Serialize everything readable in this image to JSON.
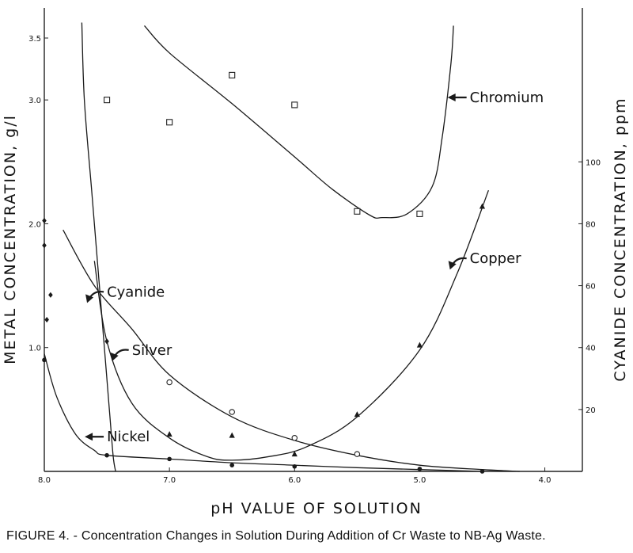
{
  "figure": {
    "caption": "FIGURE 4. - Concentration Changes in Solution During Addition of Cr Waste to NB-Ag Waste."
  },
  "chart_data": {
    "type": "line",
    "xlabel": "pH VALUE OF SOLUTION",
    "ylabel_left": "METAL CONCENTRATION, g/l",
    "ylabel_right": "CYANIDE CONCENTRATION, ppm",
    "xlim": [
      8.0,
      3.7
    ],
    "x_reversed": true,
    "ylim_left": [
      0,
      3.5
    ],
    "ylim_right": [
      0,
      140
    ],
    "x_ticks": [
      "8.0",
      "7.0",
      "6.0",
      "5.0",
      "4.0"
    ],
    "y_ticks_left": [
      "1.0",
      "2.0",
      "3.0",
      "3.5"
    ],
    "y_ticks_right": [
      "20",
      "40",
      "60",
      "80",
      "100"
    ],
    "grid": false,
    "series": [
      {
        "name": "Chromium",
        "axis": "left",
        "marker": "open-square",
        "points": [
          [
            7.5,
            3.0
          ],
          [
            7.0,
            2.82
          ],
          [
            6.5,
            3.2
          ],
          [
            6.0,
            2.96
          ],
          [
            5.5,
            2.1
          ],
          [
            5.0,
            2.08
          ]
        ],
        "curve": [
          [
            7.2,
            3.6
          ],
          [
            7.0,
            3.38
          ],
          [
            6.5,
            2.97
          ],
          [
            6.0,
            2.54
          ],
          [
            5.7,
            2.28
          ],
          [
            5.4,
            2.07
          ],
          [
            5.3,
            2.05
          ],
          [
            5.1,
            2.08
          ],
          [
            4.9,
            2.3
          ],
          [
            4.82,
            2.7
          ],
          [
            4.75,
            3.3
          ],
          [
            4.73,
            3.6
          ]
        ],
        "label_x": 4.6,
        "label_y": 3.02
      },
      {
        "name": "Copper",
        "axis": "left",
        "marker": "filled-triangle",
        "points": [
          [
            7.0,
            0.3
          ],
          [
            6.5,
            0.29
          ],
          [
            6.0,
            0.14
          ],
          [
            5.5,
            0.46
          ],
          [
            5.0,
            1.02
          ],
          [
            4.5,
            2.14
          ]
        ],
        "curve": [
          [
            7.6,
            1.7
          ],
          [
            7.5,
            1.05
          ],
          [
            7.3,
            0.55
          ],
          [
            7.0,
            0.27
          ],
          [
            6.7,
            0.12
          ],
          [
            6.5,
            0.09
          ],
          [
            6.2,
            0.12
          ],
          [
            5.9,
            0.2
          ],
          [
            5.5,
            0.44
          ],
          [
            5.0,
            0.98
          ],
          [
            4.7,
            1.6
          ],
          [
            4.45,
            2.27
          ]
        ],
        "label_x": 4.6,
        "label_y": 1.72
      },
      {
        "name": "Silver",
        "axis": "left",
        "marker": "open-circle",
        "points": [
          [
            7.0,
            0.72
          ],
          [
            6.5,
            0.48
          ],
          [
            6.0,
            0.27
          ],
          [
            5.5,
            0.14
          ]
        ],
        "curve": [
          [
            7.85,
            1.95
          ],
          [
            7.6,
            1.5
          ],
          [
            7.3,
            1.15
          ],
          [
            7.0,
            0.78
          ],
          [
            6.5,
            0.44
          ],
          [
            6.0,
            0.25
          ],
          [
            5.5,
            0.13
          ],
          [
            5.0,
            0.05
          ],
          [
            4.5,
            0.015
          ],
          [
            4.2,
            0.0
          ]
        ],
        "label_x": 7.3,
        "label_y": 0.98
      },
      {
        "name": "Nickel",
        "axis": "left",
        "marker": "filled-circle",
        "points": [
          [
            8.0,
            0.9
          ],
          [
            7.5,
            0.13
          ],
          [
            7.0,
            0.1
          ],
          [
            6.5,
            0.05
          ],
          [
            6.0,
            0.04
          ],
          [
            5.0,
            0.02
          ],
          [
            4.5,
            0.0
          ]
        ],
        "curve": [
          [
            8.0,
            0.95
          ],
          [
            7.9,
            0.6
          ],
          [
            7.75,
            0.3
          ],
          [
            7.6,
            0.17
          ],
          [
            7.5,
            0.13
          ],
          [
            7.0,
            0.1
          ],
          [
            6.5,
            0.07
          ],
          [
            6.0,
            0.05
          ],
          [
            5.5,
            0.03
          ],
          [
            5.0,
            0.015
          ],
          [
            4.5,
            0.0
          ]
        ],
        "label_x": 7.5,
        "label_y": 0.28
      },
      {
        "name": "Cyanide",
        "axis": "right",
        "marker": "filled-diamond",
        "points": [
          [
            8.0,
            81
          ],
          [
            8.0,
            73
          ],
          [
            7.95,
            57
          ],
          [
            7.98,
            49
          ],
          [
            7.5,
            42
          ]
        ],
        "curve": [
          [
            7.7,
            145
          ],
          [
            7.68,
            120
          ],
          [
            7.62,
            90
          ],
          [
            7.56,
            60
          ],
          [
            7.52,
            40
          ],
          [
            7.48,
            20
          ],
          [
            7.45,
            5
          ],
          [
            7.43,
            0
          ]
        ],
        "label_x": 7.5,
        "label_y": 1.45
      }
    ]
  }
}
